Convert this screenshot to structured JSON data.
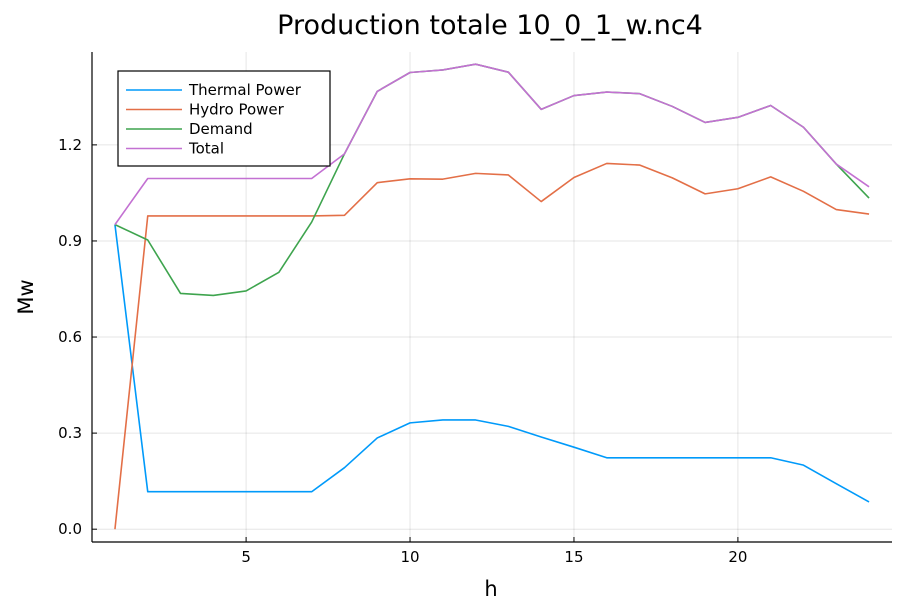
{
  "chart_data": {
    "type": "line",
    "title": "Production  totale 10_0_1_w.nc4",
    "xlabel": "h",
    "ylabel": "Mw",
    "x": [
      1,
      2,
      3,
      4,
      5,
      6,
      7,
      8,
      9,
      10,
      11,
      12,
      13,
      14,
      15,
      16,
      17,
      18,
      19,
      20,
      21,
      22,
      23,
      24
    ],
    "xlim": [
      0.3,
      24.7
    ],
    "ylim": [
      -0.04,
      1.49
    ],
    "xticks": [
      5,
      10,
      15,
      20
    ],
    "xtick_labels": [
      "5",
      "10",
      "15",
      "20"
    ],
    "yticks": [
      0.0,
      0.3,
      0.6,
      0.9,
      1.2
    ],
    "ytick_labels": [
      "0.0",
      "0.3",
      "0.6",
      "0.9",
      "1.2"
    ],
    "grid": true,
    "legend_position": "top-left",
    "series": [
      {
        "name": "Thermal Power",
        "color": "#009AFA",
        "values": [
          0.951,
          0.117,
          0.117,
          0.117,
          0.117,
          0.117,
          0.117,
          0.192,
          0.285,
          0.332,
          0.341,
          0.341,
          0.321,
          0.288,
          0.256,
          0.223,
          0.223,
          0.223,
          0.223,
          0.223,
          0.223,
          0.2,
          0.142,
          0.085
        ]
      },
      {
        "name": "Hydro Power",
        "color": "#E36F47",
        "values": [
          0.0,
          0.978,
          0.978,
          0.978,
          0.978,
          0.978,
          0.978,
          0.98,
          1.082,
          1.094,
          1.093,
          1.111,
          1.106,
          1.023,
          1.098,
          1.142,
          1.137,
          1.097,
          1.047,
          1.063,
          1.1,
          1.055,
          0.998,
          0.984
        ]
      },
      {
        "name": "Demand",
        "color": "#3EA44E",
        "values": [
          0.951,
          0.903,
          0.736,
          0.73,
          0.744,
          0.802,
          0.959,
          1.172,
          1.367,
          1.426,
          1.434,
          1.452,
          1.427,
          1.311,
          1.354,
          1.365,
          1.36,
          1.32,
          1.27,
          1.286,
          1.323,
          1.255,
          1.14,
          1.034
        ]
      },
      {
        "name": "Total",
        "color": "#C371D2",
        "values": [
          0.951,
          1.095,
          1.095,
          1.095,
          1.095,
          1.095,
          1.095,
          1.172,
          1.367,
          1.426,
          1.434,
          1.452,
          1.427,
          1.311,
          1.354,
          1.365,
          1.36,
          1.32,
          1.27,
          1.286,
          1.323,
          1.255,
          1.14,
          1.069
        ]
      }
    ]
  }
}
